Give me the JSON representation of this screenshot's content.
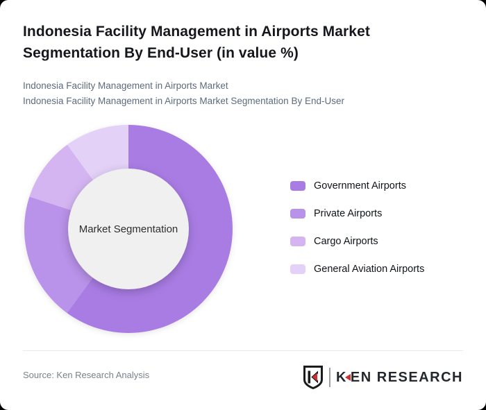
{
  "page": {
    "background": "#000000",
    "card_background": "#ffffff"
  },
  "header": {
    "title": "Indonesia Facility Management in Airports Market Segmentation By End-User (in value %)",
    "subtitle_line1": "Indonesia Facility Management in Airports Market",
    "subtitle_line2": "Indonesia Facility Management in Airports Market Segmentation By End-User"
  },
  "chart_data": {
    "type": "pie",
    "variant": "donut",
    "center_label": "Market Segmentation",
    "unit": "value %",
    "categories": [
      "Government Airports",
      "Private Airports",
      "Cargo Airports",
      "General Aviation Airports"
    ],
    "values": [
      60,
      20,
      10,
      10
    ],
    "colors": [
      "#a97ce4",
      "#b992e9",
      "#d4b5f1",
      "#e3d1f8"
    ],
    "hole_color": "#f0f0f0",
    "start_angle_deg": 0,
    "direction": "clockwise",
    "legend_position": "right"
  },
  "footer": {
    "source_text": "Source: Ken Research Analysis",
    "logo_k": "K",
    "logo_rest": "EN RESEARCH"
  }
}
